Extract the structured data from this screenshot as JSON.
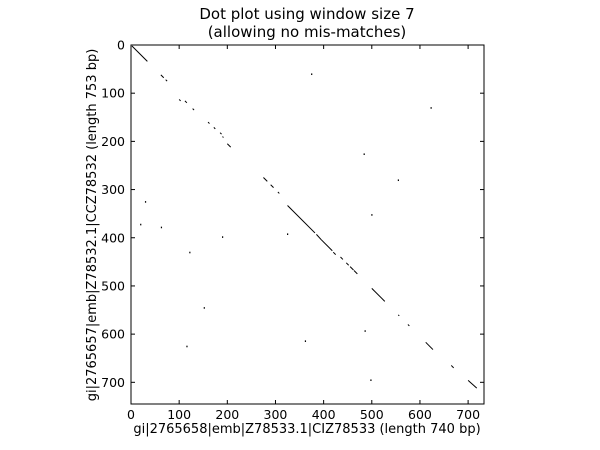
{
  "chart_data": {
    "type": "scatter",
    "title": [
      "Dot plot using window size 7",
      "(allowing no mis-matches)"
    ],
    "xlabel": "gi|2765658|emb|Z78533.1|CIZ78533 (length 740 bp)",
    "ylabel": "gi|2765657|emb|Z78532.1|CCZ78532 (length 753 bp)",
    "xlim": [
      0,
      733
    ],
    "ylim": [
      745,
      0
    ],
    "y_inverted": true,
    "grid": false,
    "legend": "none",
    "xticks": [
      0,
      100,
      200,
      300,
      400,
      500,
      600,
      700
    ],
    "yticks": [
      0,
      100,
      200,
      300,
      400,
      500,
      600,
      700
    ],
    "mark_color": "#000000",
    "segments": [
      {
        "x": [
          2,
          34
        ],
        "y": [
          2,
          34
        ]
      },
      {
        "x": [
          62,
          68
        ],
        "y": [
          62,
          68
        ]
      },
      {
        "x": [
          72,
          75
        ],
        "y": [
          72,
          75
        ]
      },
      {
        "x": [
          100,
          103
        ],
        "y": [
          113,
          116
        ]
      },
      {
        "x": [
          112,
          116
        ],
        "y": [
          116,
          120
        ]
      },
      {
        "x": [
          128,
          131
        ],
        "y": [
          132,
          135
        ]
      },
      {
        "x": [
          160,
          163
        ],
        "y": [
          160,
          163
        ]
      },
      {
        "x": [
          172,
          175
        ],
        "y": [
          171,
          174
        ]
      },
      {
        "x": [
          185,
          188
        ],
        "y": [
          182,
          185
        ]
      },
      {
        "x": [
          190,
          192
        ],
        "y": [
          190,
          192
        ]
      },
      {
        "x": [
          200,
          207
        ],
        "y": [
          205,
          212
        ]
      },
      {
        "x": [
          275,
          283
        ],
        "y": [
          275,
          283
        ]
      },
      {
        "x": [
          290,
          296
        ],
        "y": [
          290,
          296
        ]
      },
      {
        "x": [
          305,
          308
        ],
        "y": [
          305,
          308
        ]
      },
      {
        "x": [
          325,
          382
        ],
        "y": [
          333,
          390
        ]
      },
      {
        "x": [
          385,
          395
        ],
        "y": [
          393,
          404
        ]
      },
      {
        "x": [
          395,
          418
        ],
        "y": [
          404,
          427
        ]
      },
      {
        "x": [
          420,
          425
        ],
        "y": [
          430,
          435
        ]
      },
      {
        "x": [
          435,
          440
        ],
        "y": [
          440,
          445
        ]
      },
      {
        "x": [
          447,
          452
        ],
        "y": [
          452,
          457
        ]
      },
      {
        "x": [
          455,
          462
        ],
        "y": [
          460,
          467
        ]
      },
      {
        "x": [
          463,
          470
        ],
        "y": [
          468,
          475
        ]
      },
      {
        "x": [
          500,
          527
        ],
        "y": [
          505,
          532
        ]
      },
      {
        "x": [
          555,
          557
        ],
        "y": [
          560,
          562
        ]
      },
      {
        "x": [
          575,
          578
        ],
        "y": [
          580,
          583
        ]
      },
      {
        "x": [
          612,
          627
        ],
        "y": [
          617,
          632
        ]
      },
      {
        "x": [
          665,
          670
        ],
        "y": [
          665,
          670
        ]
      },
      {
        "x": [
          700,
          718
        ],
        "y": [
          696,
          712
        ]
      }
    ],
    "points": [
      {
        "x": 375,
        "y": 60
      },
      {
        "x": 623,
        "y": 130
      },
      {
        "x": 484,
        "y": 226
      },
      {
        "x": 555,
        "y": 280
      },
      {
        "x": 30,
        "y": 325
      },
      {
        "x": 500,
        "y": 352
      },
      {
        "x": 20,
        "y": 372
      },
      {
        "x": 63,
        "y": 378
      },
      {
        "x": 325,
        "y": 392
      },
      {
        "x": 190,
        "y": 398
      },
      {
        "x": 122,
        "y": 430
      },
      {
        "x": 152,
        "y": 545
      },
      {
        "x": 486,
        "y": 593
      },
      {
        "x": 362,
        "y": 614
      },
      {
        "x": 116,
        "y": 625
      },
      {
        "x": 498,
        "y": 695
      }
    ]
  }
}
